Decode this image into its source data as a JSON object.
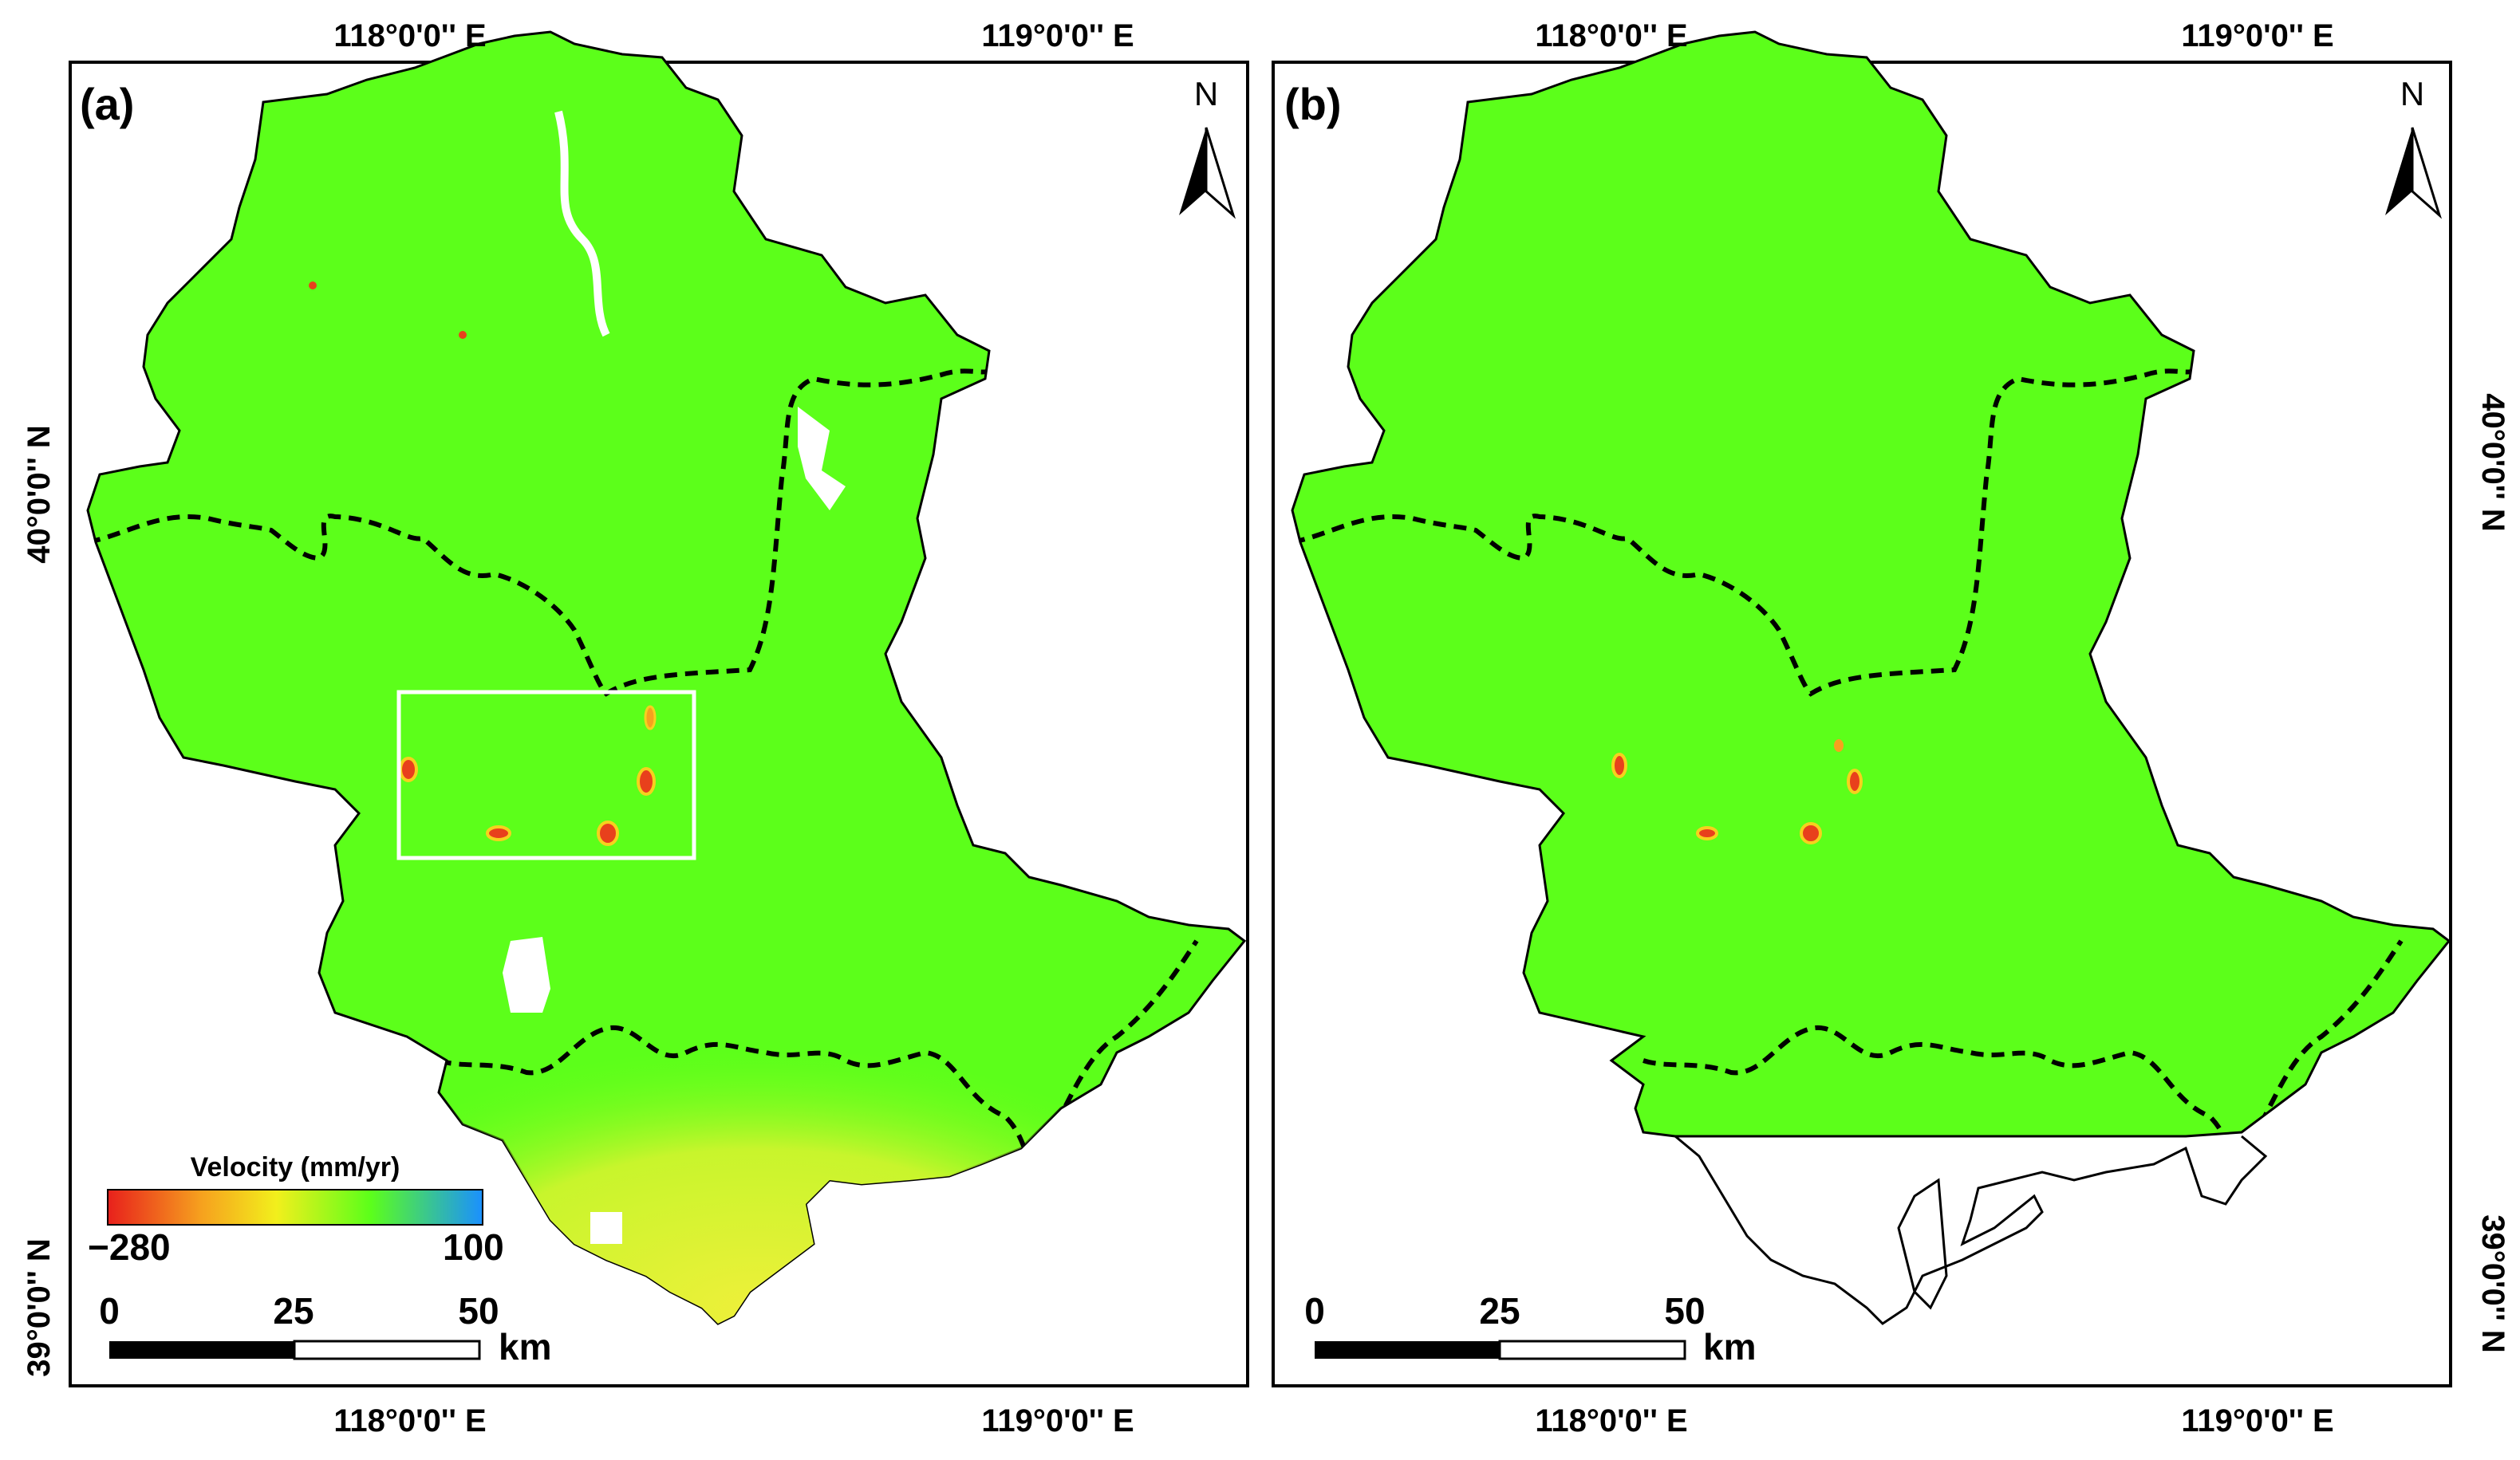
{
  "panels": [
    {
      "label": "(a)",
      "north": "N",
      "legend": {
        "title": "Velocity (mm/yr)",
        "min_label": "−280",
        "max_label": "100",
        "gradient": [
          "#e8201c",
          "#f6a11e",
          "#f2ef1c",
          "#5cff1a",
          "#1a90ff"
        ]
      },
      "scale": {
        "ticks": [
          "0",
          "25",
          "50"
        ],
        "unit": "km"
      },
      "x_labels": {
        "top": [
          "118°0'0'' E",
          "119°0'0'' E"
        ],
        "bottom": [
          "118°0'0'' E",
          "119°0'0'' E"
        ]
      },
      "y_labels": [
        "40°0'0'' N",
        "39°0'0'' N"
      ]
    },
    {
      "label": "(b)",
      "north": "N",
      "scale": {
        "ticks": [
          "0",
          "25",
          "50"
        ],
        "unit": "km"
      },
      "x_labels": {
        "top": [
          "118°0'0'' E",
          "119°0'0'' E"
        ],
        "bottom": [
          "118°0'0'' E",
          "119°0'0'' E"
        ]
      },
      "y_labels": [
        "40°0'0'' N",
        "39°0'0'' N"
      ]
    }
  ],
  "colors": {
    "land_green": "#5cff1a",
    "coast_yellow": "#e6f03a",
    "hotspot_red": "#e8401c",
    "box": "#ffffff"
  }
}
